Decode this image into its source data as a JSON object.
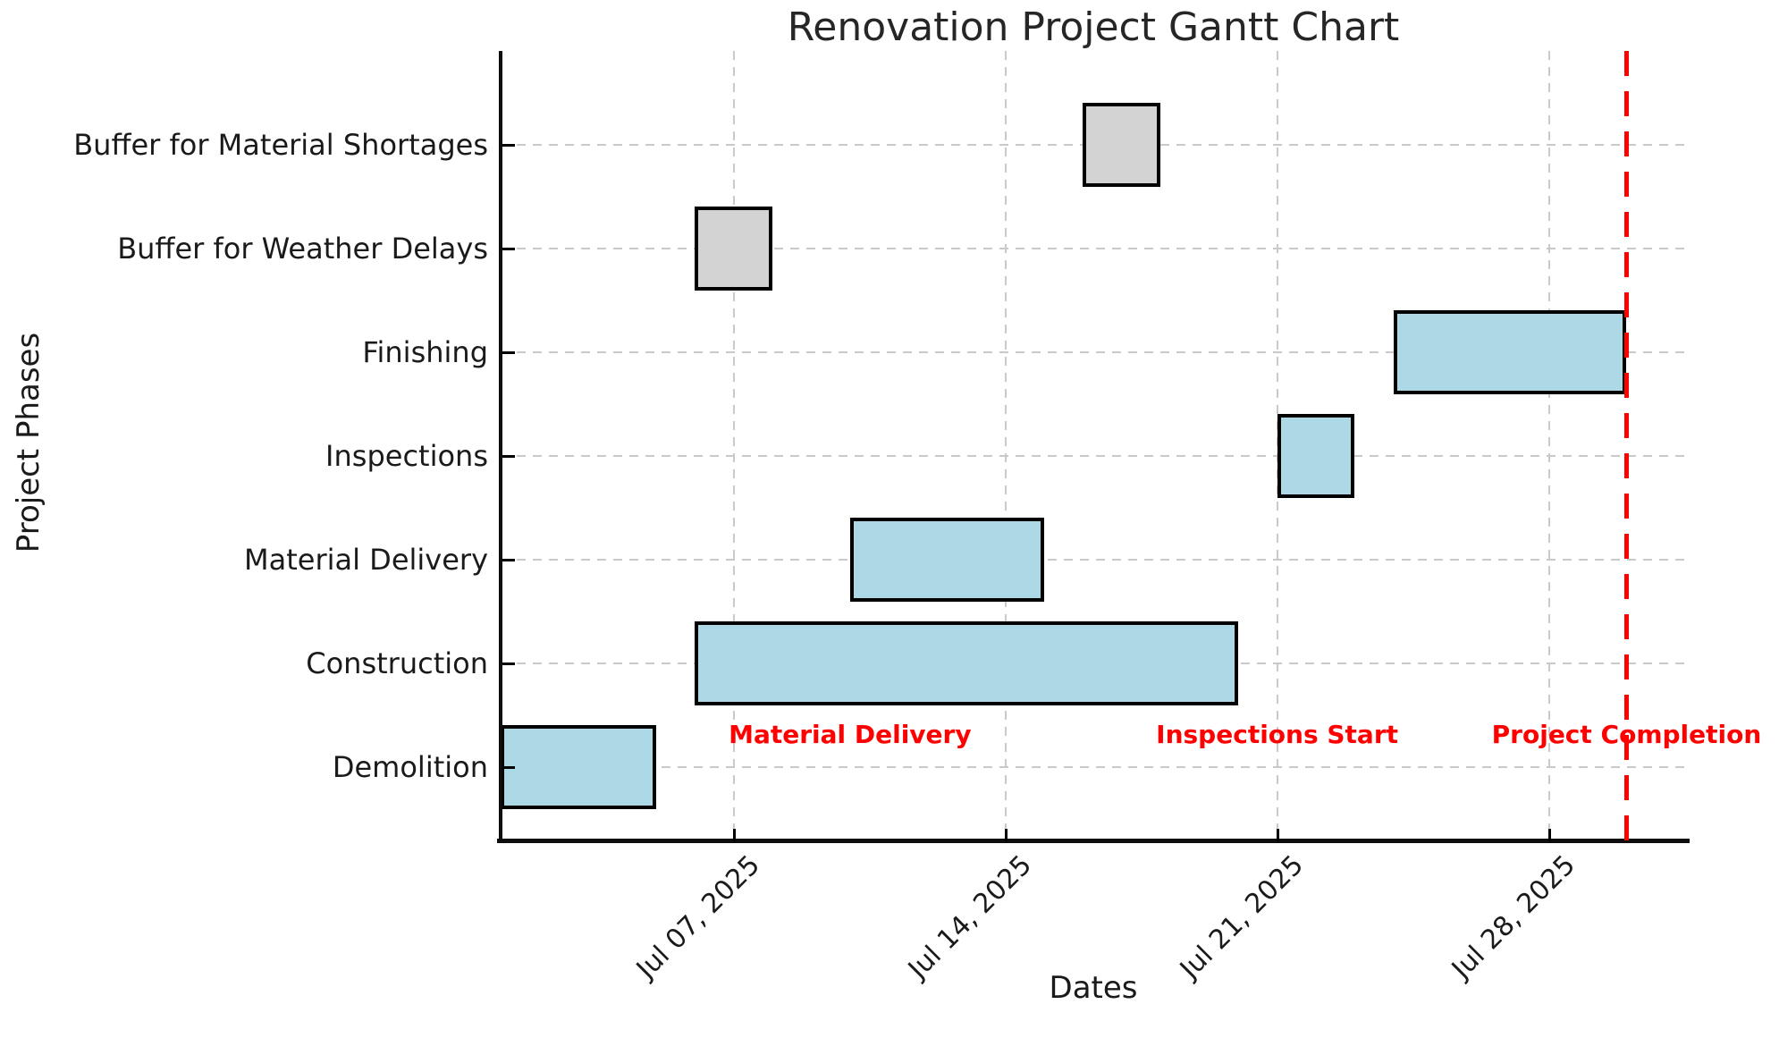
{
  "figure": {
    "title": "Renovation Project Gantt Chart",
    "xlabel": "Dates",
    "ylabel": "Project Phases"
  },
  "chart_data": {
    "type": "bar",
    "variant": "gantt-horizontal",
    "title": "Renovation Project Gantt Chart",
    "xlabel": "Dates",
    "ylabel": "Project Phases",
    "grid": true,
    "legend": false,
    "x_range": [
      "Jul 01, 2025",
      "Jul 31, 2025"
    ],
    "x_tick_labels": [
      "Jul 07, 2025",
      "Jul 14, 2025",
      "Jul 21, 2025",
      "Jul 28, 2025"
    ],
    "phases_bottom_to_top": [
      "Demolition",
      "Construction",
      "Material Delivery",
      "Inspections",
      "Finishing",
      "Buffer for Weather Delays",
      "Buffer for Material Shortages"
    ],
    "tasks": [
      {
        "phase": "Demolition",
        "start": "Jul 01, 2025",
        "end": "Jul 05, 2025",
        "kind": "task"
      },
      {
        "phase": "Construction",
        "start": "Jul 06, 2025",
        "end": "Jul 20, 2025",
        "kind": "task"
      },
      {
        "phase": "Material Delivery",
        "start": "Jul 10, 2025",
        "end": "Jul 15, 2025",
        "kind": "task"
      },
      {
        "phase": "Inspections",
        "start": "Jul 21, 2025",
        "end": "Jul 23, 2025",
        "kind": "task"
      },
      {
        "phase": "Finishing",
        "start": "Jul 24, 2025",
        "end": "Jul 30, 2025",
        "kind": "task"
      },
      {
        "phase": "Buffer for Weather Delays",
        "start": "Jul 06, 2025",
        "end": "Jul 08, 2025",
        "kind": "buffer"
      },
      {
        "phase": "Buffer for Material Shortages",
        "start": "Jul 16, 2025",
        "end": "Jul 18, 2025",
        "kind": "buffer"
      }
    ],
    "annotations": [
      {
        "label": "Material Delivery",
        "date": "Jul 10, 2025"
      },
      {
        "label": "Inspections Start",
        "date": "Jul 21, 2025"
      },
      {
        "label": "Project Completion",
        "date": "Jul 30, 2025"
      }
    ],
    "milestone_line": {
      "date": "Jul 30, 2025",
      "style": "dashed"
    },
    "colors": {
      "task_fill": "#ADD8E6",
      "buffer_fill": "#D3D3D3",
      "bar_edge": "#000000",
      "annotation": "#FF0000",
      "milestone_line": "#FF0000",
      "grid": "#C9C9C9",
      "text": "#1A1A1A"
    }
  }
}
